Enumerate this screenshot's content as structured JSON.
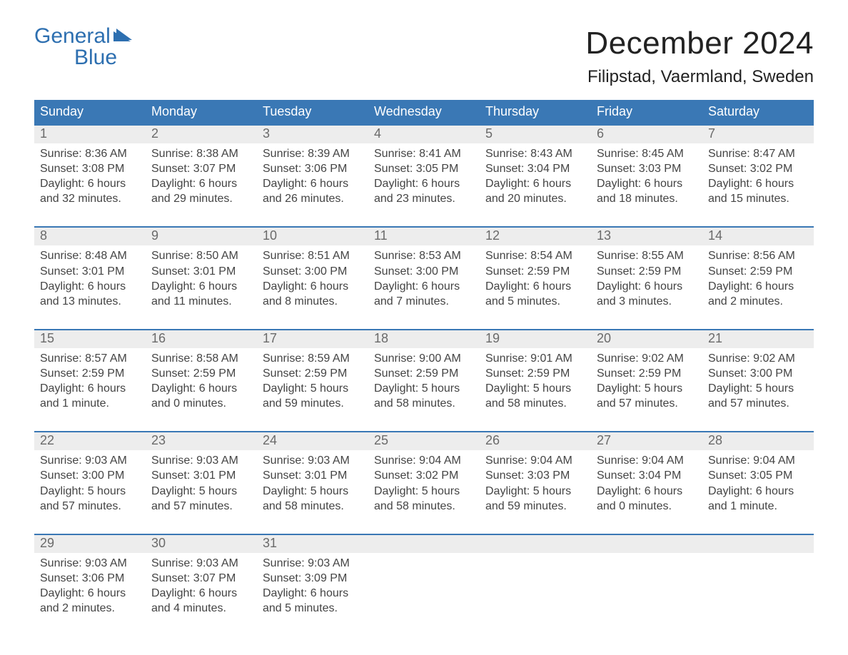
{
  "colors": {
    "brand_blue": "#2d6fb0",
    "header_bg": "#3a78b5",
    "header_text": "#ffffff",
    "daynum_bg": "#ededed",
    "daynum_text": "#6a6a6a",
    "body_text": "#444444",
    "page_bg": "#ffffff",
    "week_border": "#3a78b5"
  },
  "logo": {
    "line1": "General",
    "line2": "Blue"
  },
  "title": "December 2024",
  "location": "Filipstad, Vaermland, Sweden",
  "days_of_week": [
    "Sunday",
    "Monday",
    "Tuesday",
    "Wednesday",
    "Thursday",
    "Friday",
    "Saturday"
  ],
  "weeks": [
    [
      {
        "num": "1",
        "sunrise": "Sunrise: 8:36 AM",
        "sunset": "Sunset: 3:08 PM",
        "dl1": "Daylight: 6 hours",
        "dl2": "and 32 minutes."
      },
      {
        "num": "2",
        "sunrise": "Sunrise: 8:38 AM",
        "sunset": "Sunset: 3:07 PM",
        "dl1": "Daylight: 6 hours",
        "dl2": "and 29 minutes."
      },
      {
        "num": "3",
        "sunrise": "Sunrise: 8:39 AM",
        "sunset": "Sunset: 3:06 PM",
        "dl1": "Daylight: 6 hours",
        "dl2": "and 26 minutes."
      },
      {
        "num": "4",
        "sunrise": "Sunrise: 8:41 AM",
        "sunset": "Sunset: 3:05 PM",
        "dl1": "Daylight: 6 hours",
        "dl2": "and 23 minutes."
      },
      {
        "num": "5",
        "sunrise": "Sunrise: 8:43 AM",
        "sunset": "Sunset: 3:04 PM",
        "dl1": "Daylight: 6 hours",
        "dl2": "and 20 minutes."
      },
      {
        "num": "6",
        "sunrise": "Sunrise: 8:45 AM",
        "sunset": "Sunset: 3:03 PM",
        "dl1": "Daylight: 6 hours",
        "dl2": "and 18 minutes."
      },
      {
        "num": "7",
        "sunrise": "Sunrise: 8:47 AM",
        "sunset": "Sunset: 3:02 PM",
        "dl1": "Daylight: 6 hours",
        "dl2": "and 15 minutes."
      }
    ],
    [
      {
        "num": "8",
        "sunrise": "Sunrise: 8:48 AM",
        "sunset": "Sunset: 3:01 PM",
        "dl1": "Daylight: 6 hours",
        "dl2": "and 13 minutes."
      },
      {
        "num": "9",
        "sunrise": "Sunrise: 8:50 AM",
        "sunset": "Sunset: 3:01 PM",
        "dl1": "Daylight: 6 hours",
        "dl2": "and 11 minutes."
      },
      {
        "num": "10",
        "sunrise": "Sunrise: 8:51 AM",
        "sunset": "Sunset: 3:00 PM",
        "dl1": "Daylight: 6 hours",
        "dl2": "and 8 minutes."
      },
      {
        "num": "11",
        "sunrise": "Sunrise: 8:53 AM",
        "sunset": "Sunset: 3:00 PM",
        "dl1": "Daylight: 6 hours",
        "dl2": "and 7 minutes."
      },
      {
        "num": "12",
        "sunrise": "Sunrise: 8:54 AM",
        "sunset": "Sunset: 2:59 PM",
        "dl1": "Daylight: 6 hours",
        "dl2": "and 5 minutes."
      },
      {
        "num": "13",
        "sunrise": "Sunrise: 8:55 AM",
        "sunset": "Sunset: 2:59 PM",
        "dl1": "Daylight: 6 hours",
        "dl2": "and 3 minutes."
      },
      {
        "num": "14",
        "sunrise": "Sunrise: 8:56 AM",
        "sunset": "Sunset: 2:59 PM",
        "dl1": "Daylight: 6 hours",
        "dl2": "and 2 minutes."
      }
    ],
    [
      {
        "num": "15",
        "sunrise": "Sunrise: 8:57 AM",
        "sunset": "Sunset: 2:59 PM",
        "dl1": "Daylight: 6 hours",
        "dl2": "and 1 minute."
      },
      {
        "num": "16",
        "sunrise": "Sunrise: 8:58 AM",
        "sunset": "Sunset: 2:59 PM",
        "dl1": "Daylight: 6 hours",
        "dl2": "and 0 minutes."
      },
      {
        "num": "17",
        "sunrise": "Sunrise: 8:59 AM",
        "sunset": "Sunset: 2:59 PM",
        "dl1": "Daylight: 5 hours",
        "dl2": "and 59 minutes."
      },
      {
        "num": "18",
        "sunrise": "Sunrise: 9:00 AM",
        "sunset": "Sunset: 2:59 PM",
        "dl1": "Daylight: 5 hours",
        "dl2": "and 58 minutes."
      },
      {
        "num": "19",
        "sunrise": "Sunrise: 9:01 AM",
        "sunset": "Sunset: 2:59 PM",
        "dl1": "Daylight: 5 hours",
        "dl2": "and 58 minutes."
      },
      {
        "num": "20",
        "sunrise": "Sunrise: 9:02 AM",
        "sunset": "Sunset: 2:59 PM",
        "dl1": "Daylight: 5 hours",
        "dl2": "and 57 minutes."
      },
      {
        "num": "21",
        "sunrise": "Sunrise: 9:02 AM",
        "sunset": "Sunset: 3:00 PM",
        "dl1": "Daylight: 5 hours",
        "dl2": "and 57 minutes."
      }
    ],
    [
      {
        "num": "22",
        "sunrise": "Sunrise: 9:03 AM",
        "sunset": "Sunset: 3:00 PM",
        "dl1": "Daylight: 5 hours",
        "dl2": "and 57 minutes."
      },
      {
        "num": "23",
        "sunrise": "Sunrise: 9:03 AM",
        "sunset": "Sunset: 3:01 PM",
        "dl1": "Daylight: 5 hours",
        "dl2": "and 57 minutes."
      },
      {
        "num": "24",
        "sunrise": "Sunrise: 9:03 AM",
        "sunset": "Sunset: 3:01 PM",
        "dl1": "Daylight: 5 hours",
        "dl2": "and 58 minutes."
      },
      {
        "num": "25",
        "sunrise": "Sunrise: 9:04 AM",
        "sunset": "Sunset: 3:02 PM",
        "dl1": "Daylight: 5 hours",
        "dl2": "and 58 minutes."
      },
      {
        "num": "26",
        "sunrise": "Sunrise: 9:04 AM",
        "sunset": "Sunset: 3:03 PM",
        "dl1": "Daylight: 5 hours",
        "dl2": "and 59 minutes."
      },
      {
        "num": "27",
        "sunrise": "Sunrise: 9:04 AM",
        "sunset": "Sunset: 3:04 PM",
        "dl1": "Daylight: 6 hours",
        "dl2": "and 0 minutes."
      },
      {
        "num": "28",
        "sunrise": "Sunrise: 9:04 AM",
        "sunset": "Sunset: 3:05 PM",
        "dl1": "Daylight: 6 hours",
        "dl2": "and 1 minute."
      }
    ],
    [
      {
        "num": "29",
        "sunrise": "Sunrise: 9:03 AM",
        "sunset": "Sunset: 3:06 PM",
        "dl1": "Daylight: 6 hours",
        "dl2": "and 2 minutes."
      },
      {
        "num": "30",
        "sunrise": "Sunrise: 9:03 AM",
        "sunset": "Sunset: 3:07 PM",
        "dl1": "Daylight: 6 hours",
        "dl2": "and 4 minutes."
      },
      {
        "num": "31",
        "sunrise": "Sunrise: 9:03 AM",
        "sunset": "Sunset: 3:09 PM",
        "dl1": "Daylight: 6 hours",
        "dl2": "and 5 minutes."
      },
      null,
      null,
      null,
      null
    ]
  ]
}
